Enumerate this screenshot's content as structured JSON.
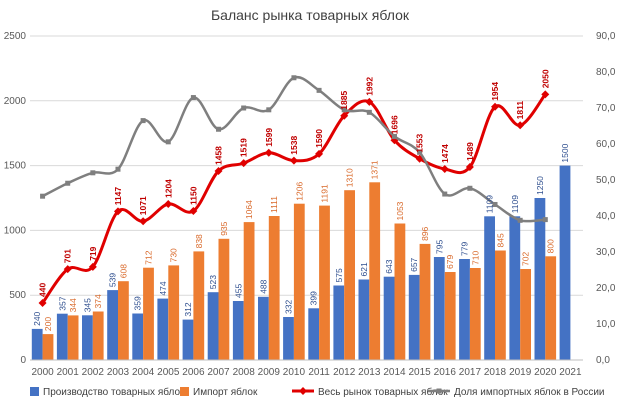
{
  "chart_data": {
    "type": "bar",
    "title": "Баланс рынка товарных яблок",
    "categories": [
      "2000",
      "2001",
      "2002",
      "2003",
      "2004",
      "2005",
      "2006",
      "2007",
      "2008",
      "2009",
      "2010",
      "2011",
      "2012",
      "2013",
      "2014",
      "2015",
      "2016",
      "2017",
      "2018",
      "2019",
      "2020",
      "2021"
    ],
    "ylim": [
      0,
      2500
    ],
    "y_ticks": [
      "0",
      "500",
      "1000",
      "1500",
      "2000",
      "2500"
    ],
    "y2lim": [
      0,
      90
    ],
    "y2_ticks": [
      "0,0",
      "10,0",
      "20,0",
      "30,0",
      "40,0",
      "50,0",
      "60,0",
      "70,0",
      "80,0",
      "90,0"
    ],
    "grid": true,
    "legend_position": "bottom",
    "series": [
      {
        "name": "Производство товарных яблок",
        "type": "bar",
        "axis": "left",
        "color": "#4472c4",
        "values": [
          240,
          357,
          345,
          539,
          359,
          474,
          312,
          523,
          455,
          488,
          332,
          399,
          575,
          621,
          643,
          657,
          795,
          779,
          1109,
          1109,
          1250,
          1500
        ]
      },
      {
        "name": "Импорт яблок",
        "type": "bar",
        "axis": "left",
        "color": "#ed7d31",
        "values": [
          200,
          344,
          374,
          608,
          712,
          730,
          838,
          935,
          1064,
          1111,
          1206,
          1191,
          1310,
          1371,
          1053,
          896,
          679,
          710,
          845,
          702,
          800,
          null
        ]
      },
      {
        "name": "Весь рынок товарных яблок",
        "type": "line",
        "axis": "left",
        "color": "#e00000",
        "values": [
          440,
          701,
          719,
          1147,
          1071,
          1204,
          1150,
          1458,
          1519,
          1599,
          1538,
          1590,
          1885,
          1992,
          1696,
          1553,
          1474,
          1489,
          1954,
          1811,
          2050,
          null
        ]
      },
      {
        "name": "Доля импортных яблок в России",
        "type": "line",
        "axis": "right",
        "color": "#7f7f7f",
        "values": [
          45.5,
          49.1,
          52.0,
          53.0,
          66.5,
          60.6,
          72.9,
          64.1,
          70.0,
          69.5,
          78.4,
          74.9,
          69.5,
          68.8,
          62.1,
          57.7,
          46.1,
          47.7,
          43.2,
          38.8,
          39.0,
          null
        ]
      }
    ]
  }
}
